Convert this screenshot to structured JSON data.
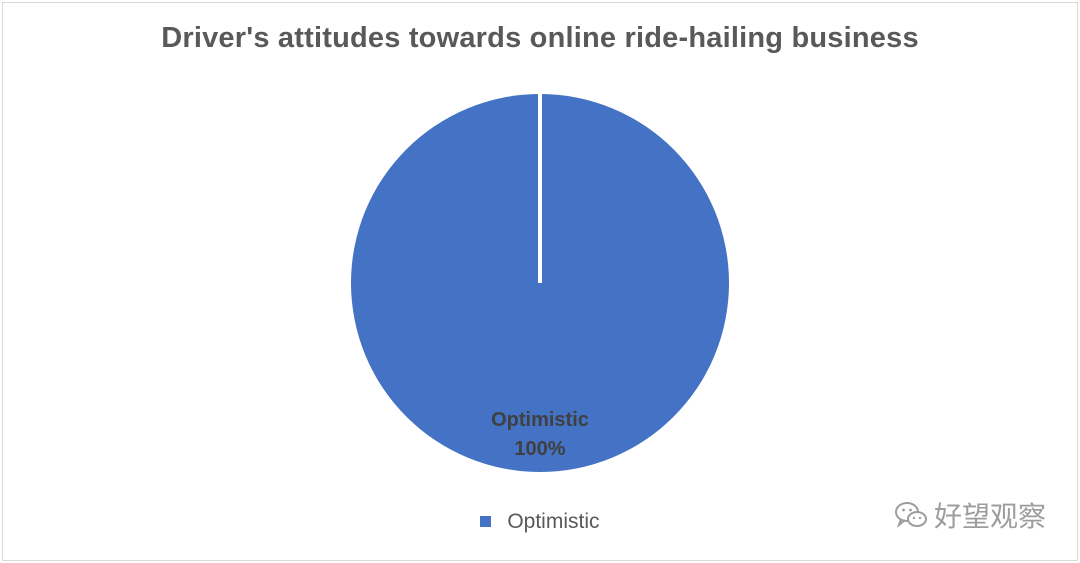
{
  "chart_data": {
    "type": "pie",
    "title": "Driver's attitudes towards online ride-hailing business",
    "categories": [
      "Optimistic"
    ],
    "values": [
      100
    ],
    "data_labels": [
      {
        "name": "Optimistic",
        "value": "100%"
      }
    ],
    "legend": {
      "position": "bottom",
      "entries": [
        "Optimistic"
      ]
    },
    "colors": [
      "#4472c4"
    ]
  },
  "watermark": {
    "icon": "wechat-icon",
    "text": "好望观察"
  }
}
